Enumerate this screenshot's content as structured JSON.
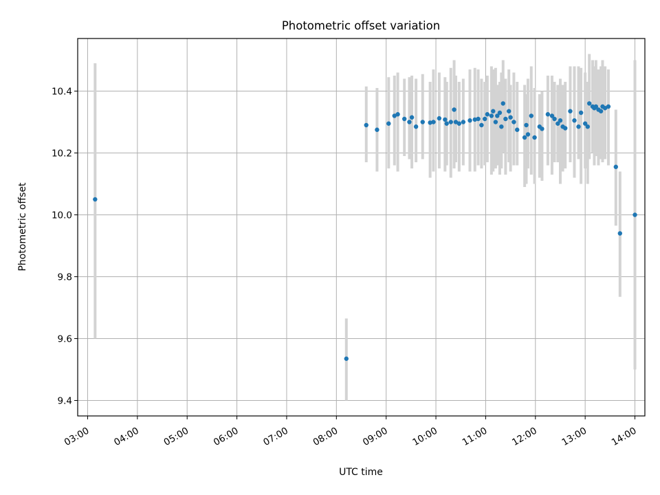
{
  "chart_data": {
    "type": "scatter",
    "title": "Photometric offset variation",
    "xlabel": "UTC time",
    "ylabel": "Photometric offset",
    "xlim": [
      "02:48",
      "14:12"
    ],
    "ylim": [
      9.35,
      10.57
    ],
    "grid": true,
    "x_ticks": [
      "03:00",
      "04:00",
      "05:00",
      "06:00",
      "07:00",
      "08:00",
      "09:00",
      "10:00",
      "11:00",
      "12:00",
      "13:00",
      "14:00"
    ],
    "y_ticks": [
      "9.4",
      "9.6",
      "9.8",
      "10.0",
      "10.2",
      "10.4"
    ],
    "y_tick_values": [
      9.4,
      9.6,
      9.8,
      10.0,
      10.2,
      10.4
    ],
    "colors": {
      "points": "#1f77b4",
      "errorbars": "#d3d3d3",
      "grid": "#b0b0b0"
    },
    "series": [
      {
        "x": [
          "03:09",
          "08:12",
          "08:36",
          "08:49",
          "09:03",
          "09:10",
          "09:14",
          "09:22",
          "09:28",
          "09:31",
          "09:36",
          "09:44",
          "09:53",
          "09:57",
          "10:04",
          "10:11",
          "10:13",
          "10:18",
          "10:22",
          "10:24",
          "10:28",
          "10:33",
          "10:41",
          "10:47",
          "10:51",
          "10:55",
          "10:59",
          "11:02",
          "11:07",
          "11:09",
          "11:12",
          "11:14",
          "11:17",
          "11:19",
          "11:21",
          "11:24",
          "11:28",
          "11:30",
          "11:34",
          "11:38",
          "11:47",
          "11:49",
          "11:51",
          "11:55",
          "11:59",
          "12:05",
          "12:08",
          "12:15",
          "12:20",
          "12:23",
          "12:27",
          "12:30",
          "12:33",
          "12:36",
          "12:42",
          "12:47",
          "12:52",
          "12:55",
          "13:00",
          "13:03",
          "13:05",
          "13:09",
          "13:11",
          "13:13",
          "13:16",
          "13:19",
          "13:21",
          "13:24",
          "13:28",
          "13:37",
          "13:42",
          "14:00"
        ],
        "y": [
          10.05,
          9.535,
          10.29,
          10.275,
          10.295,
          10.32,
          10.325,
          10.31,
          10.3,
          10.315,
          10.285,
          10.3,
          10.298,
          10.3,
          10.312,
          10.308,
          10.295,
          10.3,
          10.34,
          10.3,
          10.295,
          10.3,
          10.305,
          10.308,
          10.31,
          10.29,
          10.31,
          10.325,
          10.32,
          10.335,
          10.3,
          10.32,
          10.33,
          10.285,
          10.36,
          10.31,
          10.335,
          10.315,
          10.3,
          10.275,
          10.25,
          10.29,
          10.26,
          10.32,
          10.25,
          10.285,
          10.278,
          10.325,
          10.32,
          10.31,
          10.295,
          10.305,
          10.285,
          10.28,
          10.335,
          10.305,
          10.285,
          10.33,
          10.295,
          10.285,
          10.36,
          10.35,
          10.345,
          10.35,
          10.34,
          10.335,
          10.35,
          10.345,
          10.35,
          10.155,
          9.94,
          10.0
        ],
        "yerr_low": [
          9.6,
          9.4,
          10.17,
          10.14,
          10.15,
          10.16,
          10.14,
          10.19,
          10.18,
          10.15,
          10.17,
          10.18,
          10.12,
          10.14,
          10.15,
          10.14,
          10.16,
          10.12,
          10.15,
          10.17,
          10.14,
          10.16,
          10.14,
          10.14,
          10.16,
          10.15,
          10.16,
          10.17,
          10.13,
          10.14,
          10.15,
          10.16,
          10.13,
          10.15,
          10.2,
          10.13,
          10.17,
          10.14,
          10.16,
          10.16,
          10.09,
          10.1,
          10.15,
          10.13,
          10.1,
          10.12,
          10.11,
          10.16,
          10.13,
          10.17,
          10.17,
          10.1,
          10.14,
          10.15,
          10.17,
          10.12,
          10.18,
          10.1,
          10.15,
          10.1,
          10.18,
          10.2,
          10.16,
          10.19,
          10.16,
          10.18,
          10.17,
          10.18,
          10.16,
          9.965,
          9.735,
          9.5
        ],
        "yerr_high": [
          10.49,
          9.665,
          10.415,
          10.41,
          10.445,
          10.45,
          10.46,
          10.44,
          10.445,
          10.45,
          10.44,
          10.455,
          10.43,
          10.47,
          10.46,
          10.445,
          10.43,
          10.475,
          10.5,
          10.45,
          10.43,
          10.44,
          10.47,
          10.475,
          10.47,
          10.44,
          10.43,
          10.45,
          10.48,
          10.47,
          10.475,
          10.42,
          10.43,
          10.46,
          10.5,
          10.44,
          10.47,
          10.42,
          10.46,
          10.43,
          10.42,
          10.39,
          10.44,
          10.48,
          10.41,
          10.39,
          10.4,
          10.45,
          10.45,
          10.43,
          10.42,
          10.44,
          10.42,
          10.43,
          10.48,
          10.48,
          10.48,
          10.475,
          10.46,
          10.43,
          10.52,
          10.5,
          10.48,
          10.5,
          10.47,
          10.48,
          10.5,
          10.48,
          10.47,
          10.34,
          10.14,
          10.5
        ]
      }
    ]
  }
}
